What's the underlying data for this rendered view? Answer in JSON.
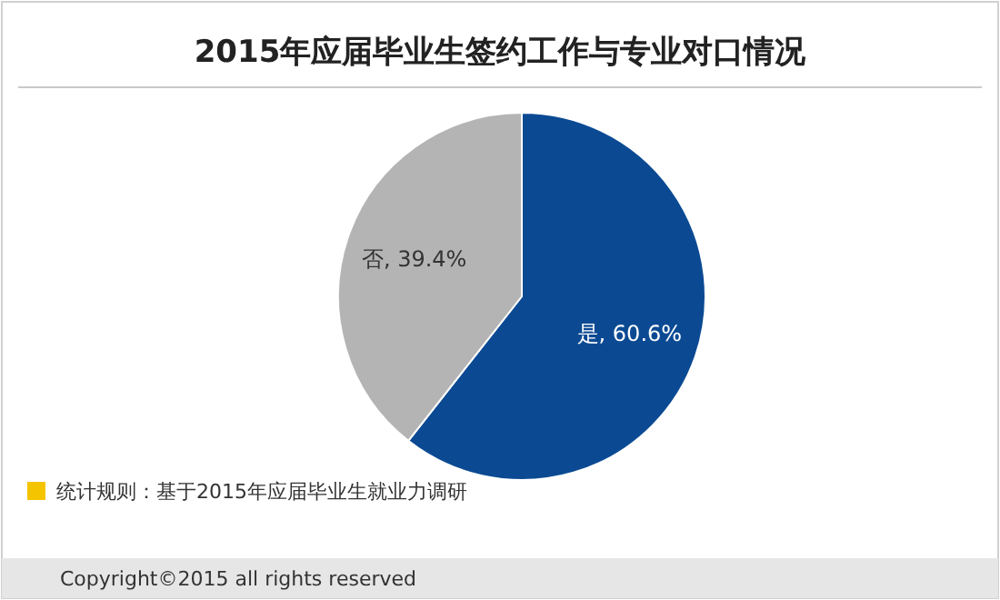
{
  "chart_data": {
    "type": "pie",
    "title": "2015年应届毕业生签约工作与专业对口情况",
    "categories": [
      "是",
      "否"
    ],
    "values": [
      60.6,
      39.4
    ],
    "colors": [
      "#0b4a93",
      "#b4b4b4"
    ],
    "value_labels": [
      ", 60.6%",
      ", 39.4%"
    ],
    "annotations": [
      "统计规则：基于2015年应届毕业生就业力调研",
      "Copyright©2015 all rights reserved"
    ]
  }
}
